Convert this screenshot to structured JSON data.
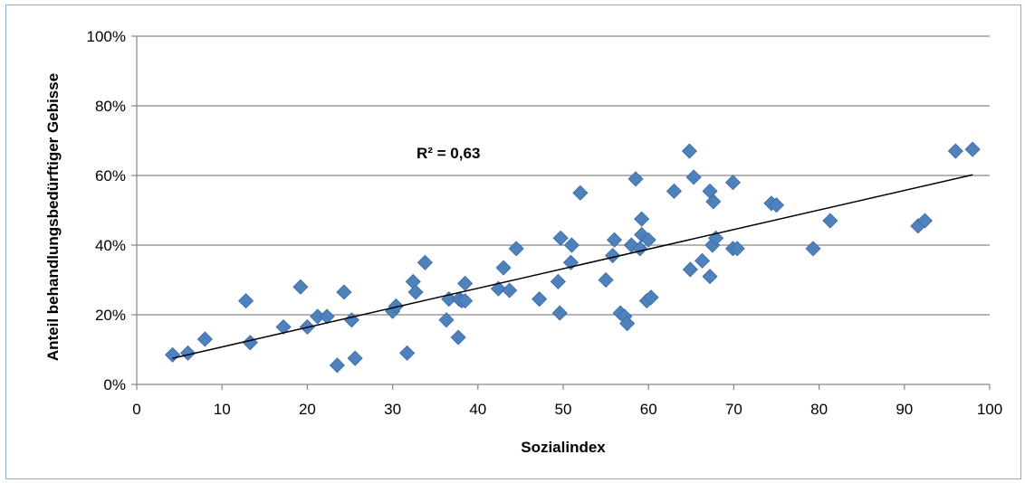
{
  "chart_data": {
    "type": "scatter",
    "xlabel": "Sozialindex",
    "ylabel": "Anteil behandlungsbedürftiger Gebisse",
    "xlim": [
      0,
      100
    ],
    "ylim": [
      0,
      1
    ],
    "x_ticks": [
      "0",
      "10",
      "20",
      "30",
      "40",
      "50",
      "60",
      "70",
      "80",
      "90",
      "100"
    ],
    "y_ticks": [
      "0%",
      "20%",
      "40%",
      "60%",
      "80%",
      "100%"
    ],
    "grid": "horizontal",
    "legend": "none",
    "marker_color": "#4f81bd",
    "annotation": "R² = 0,63",
    "trendline": {
      "x": [
        4.2,
        98.0
      ],
      "y": [
        0.075,
        0.602
      ]
    },
    "series": [
      {
        "points": [
          [
            4.2,
            0.085
          ],
          [
            6.0,
            0.09
          ],
          [
            8.0,
            0.13
          ],
          [
            12.8,
            0.24
          ],
          [
            13.3,
            0.12
          ],
          [
            17.2,
            0.165
          ],
          [
            19.2,
            0.28
          ],
          [
            20.0,
            0.165
          ],
          [
            21.2,
            0.195
          ],
          [
            22.3,
            0.195
          ],
          [
            23.5,
            0.055
          ],
          [
            24.3,
            0.265
          ],
          [
            25.2,
            0.185
          ],
          [
            25.6,
            0.075
          ],
          [
            30.0,
            0.21
          ],
          [
            30.4,
            0.225
          ],
          [
            31.7,
            0.09
          ],
          [
            32.4,
            0.295
          ],
          [
            32.7,
            0.265
          ],
          [
            33.8,
            0.35
          ],
          [
            36.3,
            0.185
          ],
          [
            36.6,
            0.245
          ],
          [
            37.7,
            0.135
          ],
          [
            37.8,
            0.245
          ],
          [
            38.1,
            0.24
          ],
          [
            38.5,
            0.29
          ],
          [
            38.5,
            0.24
          ],
          [
            42.4,
            0.275
          ],
          [
            43.0,
            0.335
          ],
          [
            43.7,
            0.27
          ],
          [
            44.5,
            0.39
          ],
          [
            47.2,
            0.245
          ],
          [
            49.4,
            0.295
          ],
          [
            49.6,
            0.205
          ],
          [
            49.7,
            0.42
          ],
          [
            50.9,
            0.35
          ],
          [
            51.0,
            0.4
          ],
          [
            52.0,
            0.55
          ],
          [
            55.0,
            0.3
          ],
          [
            55.8,
            0.37
          ],
          [
            56.0,
            0.415
          ],
          [
            56.7,
            0.205
          ],
          [
            57.2,
            0.195
          ],
          [
            57.5,
            0.175
          ],
          [
            58.0,
            0.4
          ],
          [
            58.5,
            0.59
          ],
          [
            59.0,
            0.39
          ],
          [
            59.2,
            0.475
          ],
          [
            59.2,
            0.43
          ],
          [
            59.8,
            0.24
          ],
          [
            60.0,
            0.415
          ],
          [
            60.3,
            0.25
          ],
          [
            63.0,
            0.555
          ],
          [
            64.8,
            0.67
          ],
          [
            64.9,
            0.33
          ],
          [
            65.3,
            0.595
          ],
          [
            66.3,
            0.355
          ],
          [
            67.2,
            0.31
          ],
          [
            67.2,
            0.555
          ],
          [
            67.5,
            0.4
          ],
          [
            67.6,
            0.525
          ],
          [
            67.9,
            0.42
          ],
          [
            69.9,
            0.39
          ],
          [
            69.9,
            0.58
          ],
          [
            70.4,
            0.39
          ],
          [
            74.4,
            0.52
          ],
          [
            75.0,
            0.515
          ],
          [
            79.3,
            0.39
          ],
          [
            81.3,
            0.47
          ],
          [
            91.6,
            0.455
          ],
          [
            92.4,
            0.47
          ],
          [
            96.0,
            0.67
          ],
          [
            98.0,
            0.675
          ]
        ]
      }
    ]
  }
}
